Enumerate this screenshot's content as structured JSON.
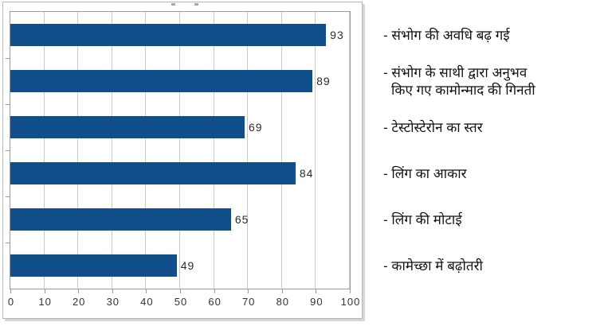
{
  "chart_data": {
    "type": "bar",
    "orientation": "horizontal",
    "title": "",
    "xlabel": "",
    "ylabel": "",
    "xlim": [
      0,
      100
    ],
    "x_ticks": [
      0,
      10,
      20,
      30,
      40,
      50,
      60,
      70,
      80,
      90,
      100
    ],
    "grid": true,
    "bar_color": "#114f8b",
    "value_labels_shown": true,
    "legend_position": "right",
    "categories": [
      "संभोग की अवधि बढ़ गई",
      "संभोग के साथी द्वारा अनुभव किए गए कामोन्माद की गिनती",
      "टेस्टोस्टेरोन का स्तर",
      "लिंग का आकार",
      "लिंग की मोटाई",
      "कामेच्छा में बढ़ोतरी"
    ],
    "values": [
      93,
      89,
      69,
      84,
      65,
      49
    ]
  },
  "legend": {
    "items": [
      {
        "lines": [
          "- संभोग की अवधि बढ़ गई"
        ]
      },
      {
        "lines": [
          "- संभोग के साथी द्वारा अनुभव",
          "किए गए कामोन्माद की गिनती"
        ]
      },
      {
        "lines": [
          "- टेस्टोस्टेरोन का स्तर"
        ]
      },
      {
        "lines": [
          "- लिंग का आकार"
        ]
      },
      {
        "lines": [
          "- लिंग की मोटाई"
        ]
      },
      {
        "lines": [
          "- कामेच्छा में बढ़ोतरी"
        ]
      }
    ]
  },
  "colors": {
    "bar": "#114f8b",
    "gridline": "#c9c9c9",
    "plot_border": "#9b9b9b",
    "chart_border": "#b7b7b7",
    "tick_label": "#333333",
    "value_label": "#2b2b2b",
    "legend_text": "#121212"
  }
}
